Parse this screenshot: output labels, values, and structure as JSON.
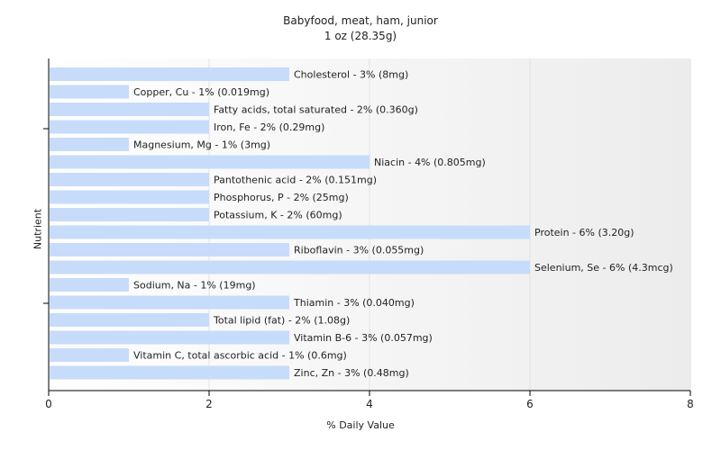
{
  "chart_data": {
    "type": "bar",
    "orientation": "horizontal",
    "title": "Babyfood, meat, ham, junior",
    "subtitle": "1 oz (28.35g)",
    "xlabel": "% Daily Value",
    "ylabel": "Nutrient",
    "xlim": [
      0,
      8
    ],
    "xticks": [
      0,
      2,
      4,
      6,
      8
    ],
    "grid": true,
    "bar_color": "#c6dcfa",
    "categories": [
      "Cholesterol - 3% (8mg)",
      "Copper, Cu - 1% (0.019mg)",
      "Fatty acids, total saturated - 2% (0.360g)",
      "Iron, Fe - 2% (0.29mg)",
      "Magnesium, Mg - 1% (3mg)",
      "Niacin - 4% (0.805mg)",
      "Pantothenic acid - 2% (0.151mg)",
      "Phosphorus, P - 2% (25mg)",
      "Potassium, K - 2% (60mg)",
      "Protein - 6% (3.20g)",
      "Riboflavin - 3% (0.055mg)",
      "Selenium, Se - 6% (4.3mcg)",
      "Sodium, Na - 1% (19mg)",
      "Thiamin - 3% (0.040mg)",
      "Total lipid (fat) - 2% (1.08g)",
      "Vitamin B-6 - 3% (0.057mg)",
      "Vitamin C, total ascorbic acid - 1% (0.6mg)",
      "Zinc, Zn - 3% (0.48mg)"
    ],
    "values": [
      3,
      1,
      2,
      2,
      1,
      4,
      2,
      2,
      2,
      6,
      3,
      6,
      1,
      3,
      2,
      3,
      1,
      3
    ]
  }
}
